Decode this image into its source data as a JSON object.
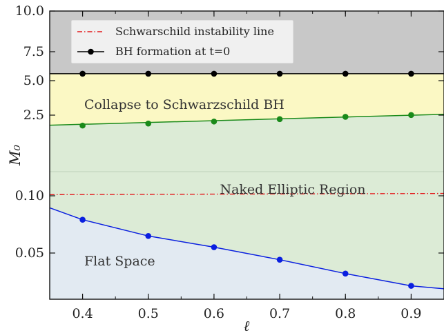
{
  "chart_data": {
    "type": "area",
    "xlabel": "ℓ",
    "ylabel": "M₀",
    "xlim": [
      0.35,
      0.95
    ],
    "x_ticks": [
      "0.4",
      "0.5",
      "0.6",
      "0.7",
      "0.8",
      "0.9"
    ],
    "y_ticks": [
      "10.0",
      "7.5",
      "5.0",
      "2.5",
      "0.10",
      "0.05"
    ],
    "grid": false,
    "legend_position": "top-left",
    "legend": [
      {
        "label": "Schwarschild instability line",
        "style": "dash-dot",
        "color": "#e31a1c"
      },
      {
        "label": "BH formation at t=0",
        "style": "line-marker",
        "color": "#000000"
      }
    ],
    "regions": [
      {
        "label": "",
        "color": "#c8c8c8"
      },
      {
        "label": "Collapse to Schwarzschild BH",
        "color": "#fbf8c4"
      },
      {
        "label": "Naked Elliptic Region",
        "color": "#dcebd6"
      },
      {
        "label": "Flat Space",
        "color": "#e2eaf2"
      }
    ],
    "series": [
      {
        "name": "BH formation at t=0",
        "color": "#000000",
        "line_x": [
          0.35,
          0.95
        ],
        "line_y": [
          5.6,
          5.6
        ],
        "points_x": [
          0.4,
          0.5,
          0.6,
          0.7,
          0.8,
          0.9
        ],
        "points_y": [
          5.6,
          5.6,
          5.6,
          5.6,
          5.6,
          5.6
        ]
      },
      {
        "name": "Schwarschild instability line",
        "color": "#e31a1c",
        "line_x": [
          0.35,
          0.95
        ],
        "line_y": [
          0.135,
          0.169
        ]
      },
      {
        "name": "",
        "color": "#1a8a1a",
        "line_x": [
          0.35,
          0.95
        ],
        "line_y": [
          2.2,
          2.56
        ],
        "points_x": [
          0.4,
          0.5,
          0.6,
          0.7,
          0.8,
          0.9
        ],
        "points_y": [
          2.19,
          2.25,
          2.31,
          2.38,
          2.45,
          2.51
        ]
      },
      {
        "name": "",
        "color": "#0a1fe0",
        "line_x": [
          0.35,
          0.4,
          0.5,
          0.6,
          0.7,
          0.8,
          0.9,
          0.95
        ],
        "line_y": [
          0.0895,
          0.0791,
          0.0649,
          0.0551,
          0.0471,
          0.0411,
          0.0358,
          0.0345
        ],
        "points_x": [
          0.4,
          0.5,
          0.6,
          0.7,
          0.8,
          0.9
        ],
        "points_y": [
          0.0791,
          0.0649,
          0.0551,
          0.0471,
          0.0411,
          0.0358
        ]
      }
    ]
  }
}
